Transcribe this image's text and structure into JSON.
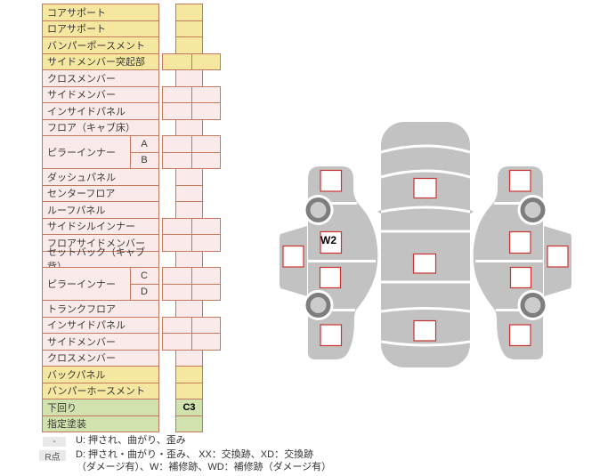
{
  "table": {
    "rows": [
      {
        "label": "コアサポート",
        "color": "yellow",
        "cells": "single"
      },
      {
        "label": "ロアサポート",
        "color": "yellow",
        "cells": "single"
      },
      {
        "label": "バンパーポースメント",
        "color": "yellow",
        "cells": "single"
      },
      {
        "label": "サイドメンバー突起部",
        "color": "yellow",
        "cells": "double"
      },
      {
        "label": "クロスメンバー",
        "color": "pink",
        "cells": "single"
      },
      {
        "label": "サイドメンバー",
        "color": "pink",
        "cells": "double"
      },
      {
        "label": "インサイドパネル",
        "color": "pink",
        "cells": "double"
      },
      {
        "label": "フロア（キャブ床）",
        "color": "pink",
        "cells": "single"
      },
      {
        "label": "ピラーインナー",
        "sub": "A",
        "merge": "start",
        "color": "pink",
        "cells": "double"
      },
      {
        "label": "",
        "sub": "B",
        "merge": "end",
        "color": "pink",
        "cells": "double"
      },
      {
        "label": "ダッシュパネル",
        "color": "pink",
        "cells": "single"
      },
      {
        "label": "センターフロア",
        "color": "pink",
        "cells": "single"
      },
      {
        "label": "ルーフパネル",
        "color": "pink",
        "cells": "single"
      },
      {
        "label": "サイドシルインナー",
        "color": "pink",
        "cells": "double"
      },
      {
        "label": "フロアサイドメンバー",
        "color": "pink",
        "cells": "double"
      },
      {
        "label": "セットバック（キャブ背）",
        "color": "pink",
        "cells": "single"
      },
      {
        "label": "ピラーインナー",
        "sub": "C",
        "merge": "start",
        "color": "pink",
        "cells": "double"
      },
      {
        "label": "",
        "sub": "D",
        "merge": "end",
        "color": "pink",
        "cells": "double"
      },
      {
        "label": "トランクフロア",
        "color": "pink",
        "cells": "single"
      },
      {
        "label": "インサイドパネル",
        "color": "pink",
        "cells": "double"
      },
      {
        "label": "サイドメンバー",
        "color": "pink",
        "cells": "double"
      },
      {
        "label": "クロスメンバー",
        "color": "pink",
        "cells": "single"
      },
      {
        "label": "バックパネル",
        "color": "yellow",
        "cells": "single"
      },
      {
        "label": "バンパーホースメント",
        "color": "yellow",
        "cells": "single"
      },
      {
        "label": "下回り",
        "color": "green",
        "cells": "single",
        "value": "C3"
      },
      {
        "label": "指定塗装",
        "color": "green",
        "cells": "single"
      }
    ]
  },
  "legend": {
    "key1": "-",
    "text1": "U: 押され、曲がり、歪み",
    "key2": "R点",
    "text2": "D: 押され・曲がり・歪み、 XX：交換跡、XD：交換跡",
    "text3": "（ダメージ有）、W：補修跡、WD：補修跡（ダメージ有）"
  },
  "diagram": {
    "left_car_marker": "W2",
    "undercarriage_marker": "C3"
  },
  "colors": {
    "section_yellow": "#f5e7a0",
    "section_pink": "#fbeaea",
    "section_green": "#d2e2ae",
    "table_border": "#c4795f",
    "marker_red": "#cc3333",
    "car_gray": "#c2c2c2",
    "wheel_dark": "#7e7e7e",
    "wheel_hub": "#cccccc",
    "legend_gray": "#e9e9e9"
  }
}
